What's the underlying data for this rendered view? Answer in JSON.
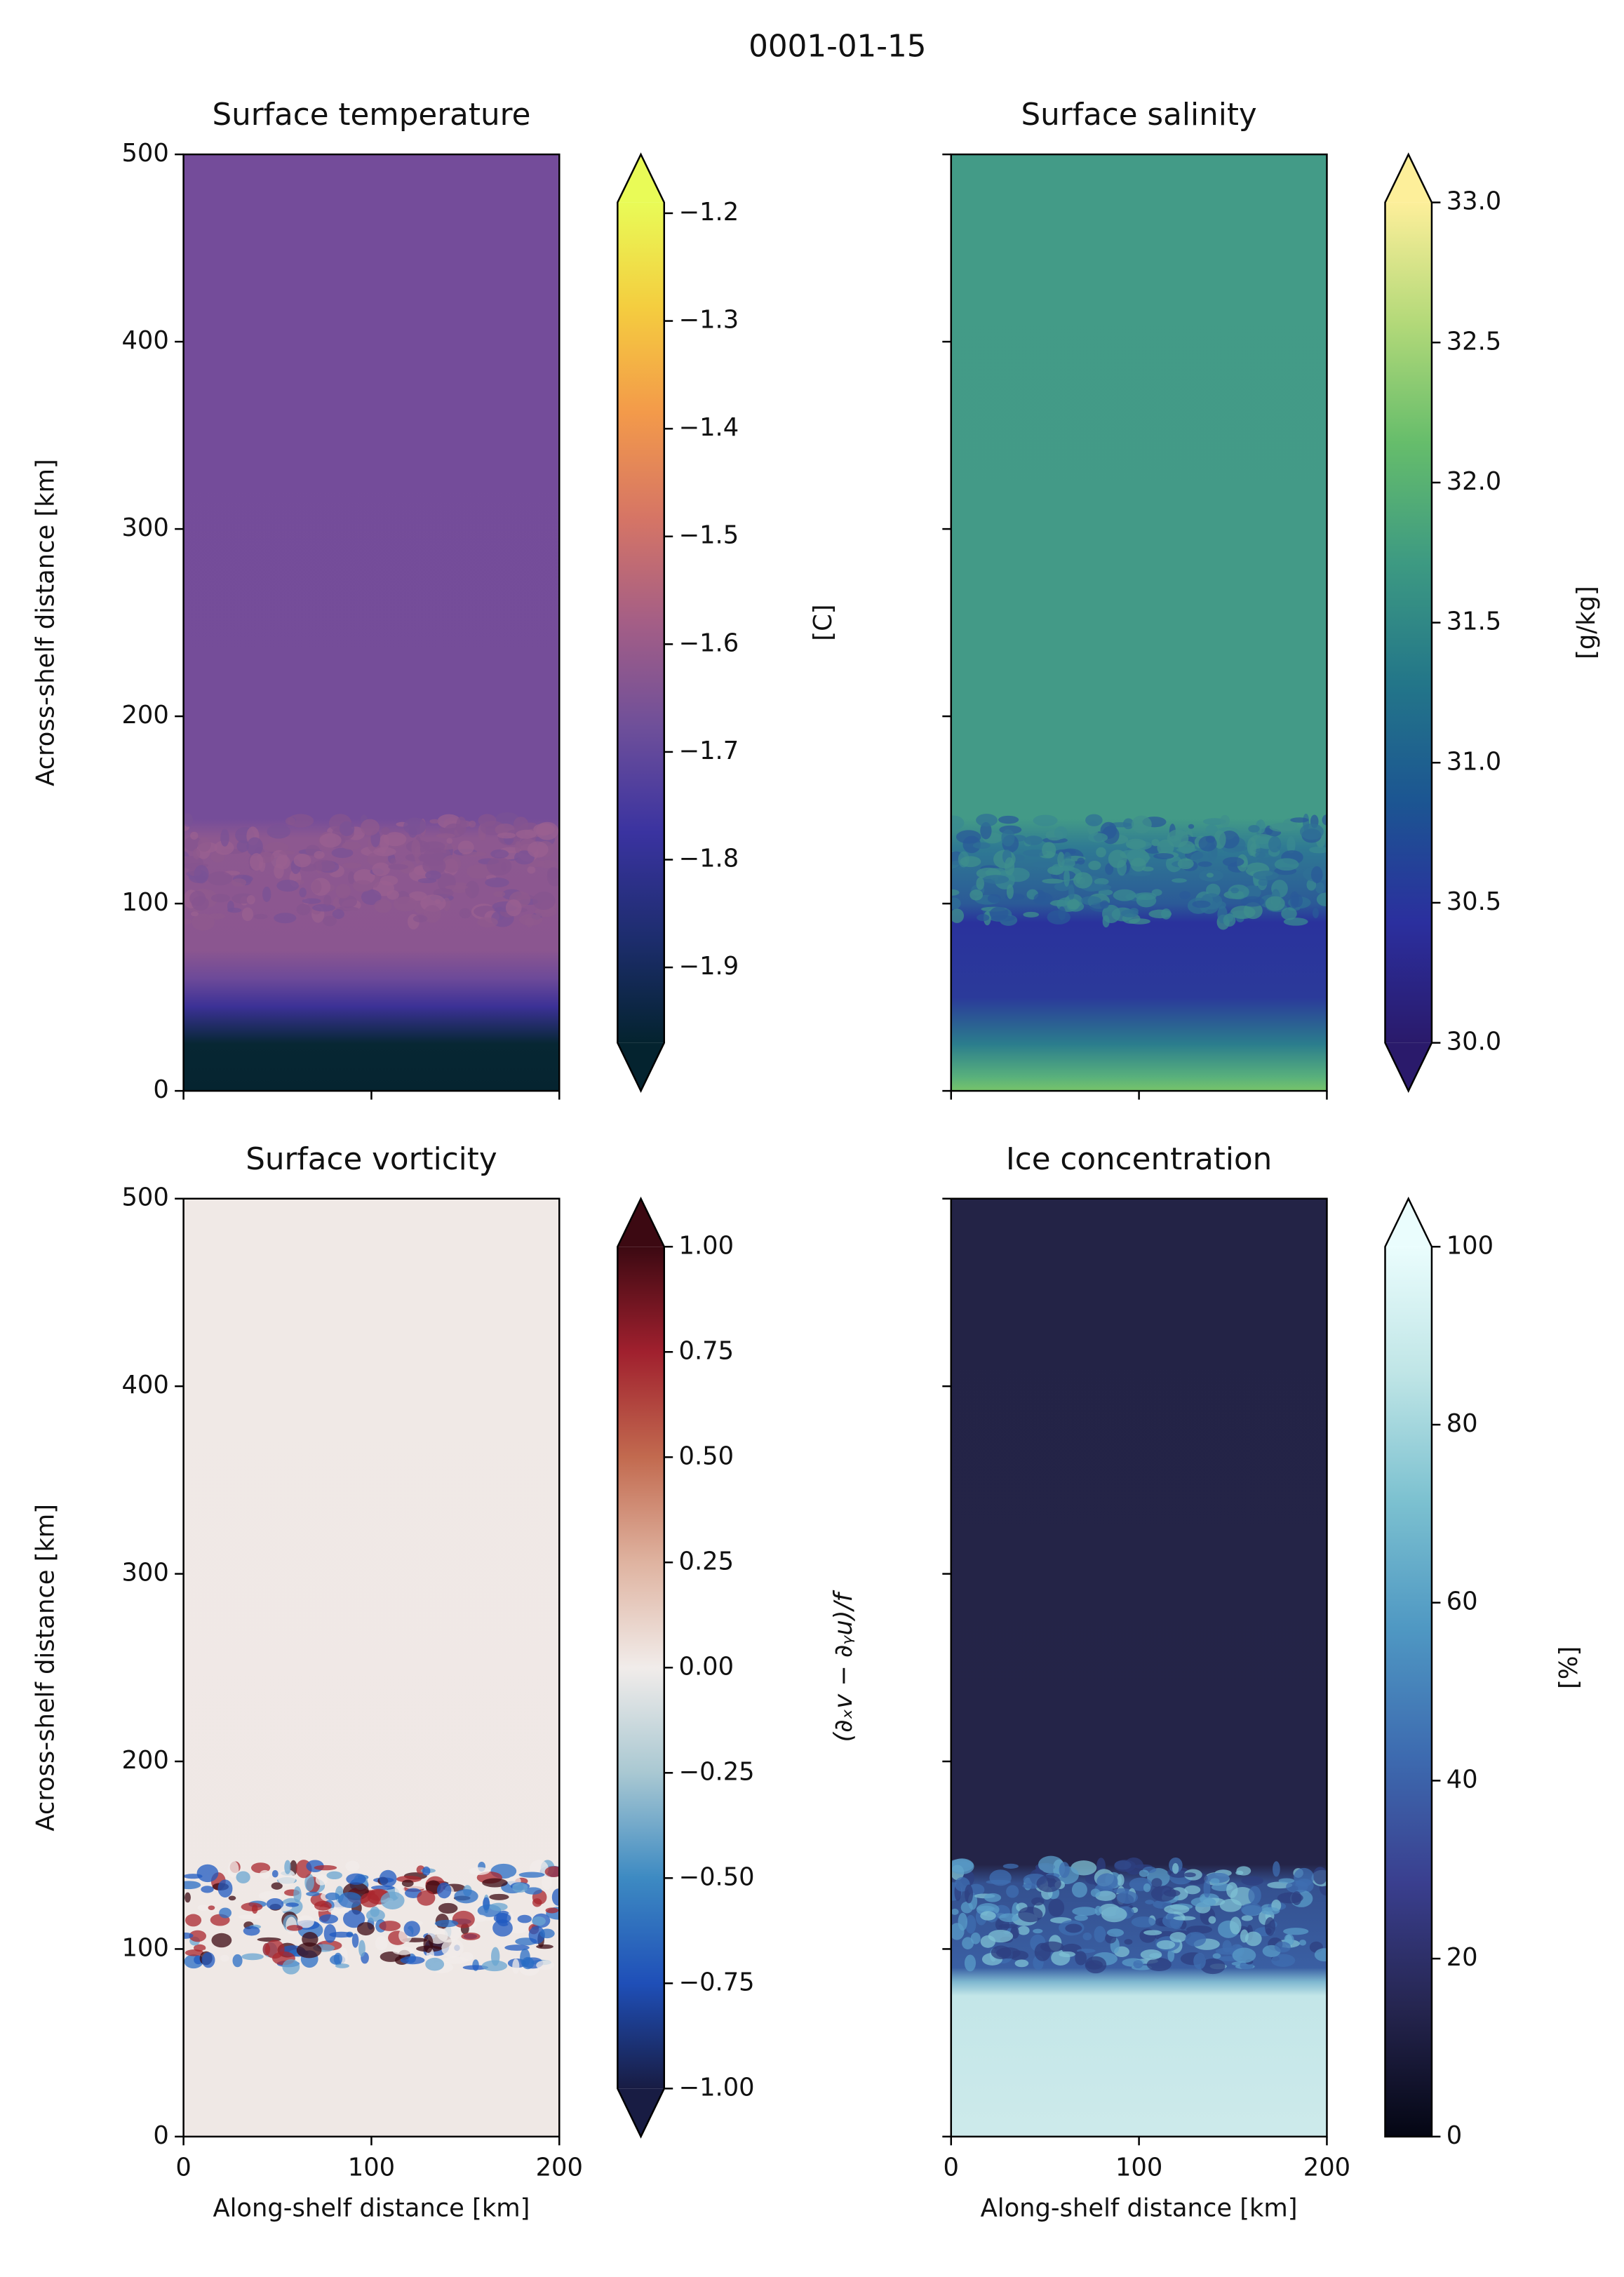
{
  "title": "0001-01-15",
  "chart_data": [
    {
      "type": "heatmap",
      "title": "Surface temperature",
      "ylabel": "Across-shelf distance [km]",
      "xlim": [
        0,
        200
      ],
      "ylim": [
        0,
        500
      ],
      "xticks": [
        0,
        100,
        200
      ],
      "yticks": [
        0,
        100,
        200,
        300,
        400,
        500
      ],
      "show_xticklabels": false,
      "show_yticklabels": true,
      "colorbar": {
        "label": "[C]",
        "lim": [
          -1.97,
          -1.19
        ],
        "extend": "both",
        "colors": [
          "#04232f",
          "#1d2d6e",
          "#3a33a0",
          "#6e4f9a",
          "#a45e86",
          "#d67565",
          "#f39a4a",
          "#f4cd3f",
          "#e9fb57"
        ],
        "ticks": [
          {
            "value": -1.9,
            "label": "−1.9"
          },
          {
            "value": -1.8,
            "label": "−1.8"
          },
          {
            "value": -1.7,
            "label": "−1.7"
          },
          {
            "value": -1.6,
            "label": "−1.6"
          },
          {
            "value": -1.5,
            "label": "−1.5"
          },
          {
            "value": -1.4,
            "label": "−1.4"
          },
          {
            "value": -1.3,
            "label": "−1.3"
          },
          {
            "value": -1.2,
            "label": "−1.2"
          }
        ]
      }
    },
    {
      "type": "heatmap",
      "title": "Surface salinity",
      "xlim": [
        0,
        200
      ],
      "ylim": [
        0,
        500
      ],
      "xticks": [
        0,
        100,
        200
      ],
      "yticks": [
        0,
        100,
        200,
        300,
        400,
        500
      ],
      "show_xticklabels": false,
      "show_yticklabels": false,
      "colorbar": {
        "label": "[g/kg]",
        "lim": [
          30.0,
          33.0
        ],
        "extend": "both",
        "colors": [
          "#2a1a6b",
          "#2b2f9e",
          "#1c5592",
          "#237689",
          "#3d9a82",
          "#66bd6b",
          "#b3d979",
          "#fdef9a"
        ],
        "ticks": [
          {
            "value": 30.0,
            "label": "30.0"
          },
          30.5,
          {
            "value": 31.0,
            "label": "31.0"
          },
          31.5,
          {
            "value": 32.0,
            "label": "32.0"
          },
          32.5,
          {
            "value": 33.0,
            "label": "33.0"
          }
        ]
      }
    },
    {
      "type": "heatmap",
      "title": "Surface vorticity",
      "xlabel": "Along-shelf distance [km]",
      "ylabel": "Across-shelf distance [km]",
      "xlim": [
        0,
        200
      ],
      "ylim": [
        0,
        500
      ],
      "xticks": [
        0,
        100,
        200
      ],
      "yticks": [
        0,
        100,
        200,
        300,
        400,
        500
      ],
      "show_xticklabels": true,
      "show_yticklabels": true,
      "colorbar": {
        "label": "(∂ₓv − ∂ᵧu)/f",
        "lim": [
          -1.0,
          1.0
        ],
        "extend": "both",
        "colors": [
          "#181c43",
          "#1f4fb8",
          "#3d8ac2",
          "#a9c8d2",
          "#f1ecea",
          "#dfb3a0",
          "#c26a4f",
          "#a0202e",
          "#3c0912"
        ],
        "ticks": [
          {
            "value": -1.0,
            "label": "−1.00"
          },
          {
            "value": -0.75,
            "label": "−0.75"
          },
          {
            "value": -0.5,
            "label": "−0.50"
          },
          {
            "value": -0.25,
            "label": "−0.25"
          },
          {
            "value": 0.0,
            "label": "0.00"
          },
          0.25,
          {
            "value": 0.5,
            "label": "0.50"
          },
          0.75,
          {
            "value": 1.0,
            "label": "1.00"
          }
        ]
      }
    },
    {
      "type": "heatmap",
      "title": "Ice concentration",
      "xlabel": "Along-shelf distance [km]",
      "xlim": [
        0,
        200
      ],
      "ylim": [
        0,
        500
      ],
      "xticks": [
        0,
        100,
        200
      ],
      "yticks": [
        0,
        100,
        200,
        300,
        400,
        500
      ],
      "show_xticklabels": true,
      "show_yticklabels": false,
      "colorbar": {
        "label": "[%]",
        "lim": [
          0,
          100
        ],
        "extend": "max",
        "colors": [
          "#040613",
          "#25254f",
          "#3a3f8f",
          "#3d6bb0",
          "#4f98c3",
          "#7cc1d0",
          "#bfe5e6",
          "#eafdfd"
        ],
        "ticks": [
          0,
          20,
          40,
          60,
          80,
          100
        ]
      }
    }
  ]
}
